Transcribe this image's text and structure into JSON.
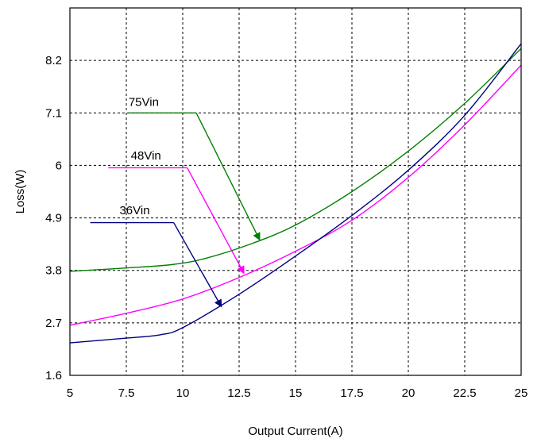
{
  "chart_data": {
    "type": "line",
    "title": "",
    "xlabel": "Output Current(A)",
    "ylabel": "Loss(W)",
    "xlim": [
      5,
      25
    ],
    "ylim": [
      1.6,
      9.3
    ],
    "x_ticks": [
      "5",
      "7.5",
      "10",
      "12.5",
      "15",
      "17.5",
      "20",
      "22.5",
      "25"
    ],
    "y_ticks": [
      "1.6",
      "2.7",
      "3.8",
      "4.9",
      "6",
      "7.1",
      "8.2"
    ],
    "grid": true,
    "legend": "none",
    "series": [
      {
        "name": "75Vin",
        "color": "#008000",
        "x": [
          5,
          7.5,
          9.5,
          11,
          13,
          15,
          17.5,
          20,
          22.5,
          25
        ],
        "y": [
          3.78,
          3.85,
          3.92,
          4.05,
          4.35,
          4.75,
          5.45,
          6.3,
          7.3,
          8.45
        ]
      },
      {
        "name": "48Vin",
        "color": "#ff00ff",
        "x": [
          5,
          7.5,
          10,
          12.5,
          15,
          17.5,
          20,
          22.5,
          25
        ],
        "y": [
          2.65,
          2.9,
          3.2,
          3.65,
          4.2,
          4.85,
          5.75,
          6.85,
          8.1
        ]
      },
      {
        "name": "36Vin",
        "color": "#000080",
        "x": [
          5,
          7.5,
          9,
          10,
          12.5,
          15,
          17.5,
          20,
          22.5,
          25
        ],
        "y": [
          2.28,
          2.38,
          2.45,
          2.6,
          3.3,
          4.1,
          4.95,
          5.9,
          7.05,
          8.55
        ]
      }
    ],
    "annotations": [
      {
        "text": "75Vin",
        "series": "75Vin",
        "label_x": 7.6,
        "label_y": 7.25,
        "line": [
          [
            7.6,
            7.1
          ],
          [
            10.6,
            7.1
          ]
        ],
        "arrow_to": [
          13.4,
          4.45
        ]
      },
      {
        "text": "48Vin",
        "series": "48Vin",
        "label_x": 7.7,
        "label_y": 6.12,
        "line": [
          [
            6.7,
            5.95
          ],
          [
            10.2,
            5.95
          ]
        ],
        "arrow_to": [
          12.7,
          3.75
        ]
      },
      {
        "text": "36Vin",
        "series": "36Vin",
        "label_x": 7.2,
        "label_y": 4.98,
        "line": [
          [
            5.9,
            4.8
          ],
          [
            9.6,
            4.8
          ]
        ],
        "arrow_to": [
          11.7,
          3.05
        ]
      }
    ]
  }
}
